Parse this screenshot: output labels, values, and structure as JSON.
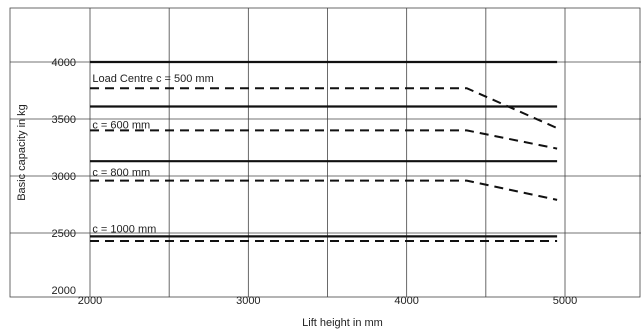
{
  "chart_data": {
    "type": "line",
    "xlabel": "Lift height in mm",
    "ylabel": "Basic capacity in kg",
    "xlim": [
      2000,
      5500
    ],
    "ylim": [
      2000,
      4200
    ],
    "xticks": [
      2000,
      3000,
      4000,
      5000
    ],
    "yticks": [
      2000,
      2500,
      3000,
      3500,
      4000
    ],
    "x_gridlines": [
      2000,
      2500,
      3000,
      3500,
      4000,
      4500,
      5000
    ],
    "y_gridlines": [
      2500,
      3000,
      3500,
      4000
    ],
    "grid": true,
    "series": [
      {
        "style": "solid",
        "x": [
          2000,
          4950
        ],
        "y": [
          4000,
          4000
        ]
      },
      {
        "style": "dashed",
        "x": [
          2000,
          4380,
          4950
        ],
        "y": [
          3770,
          3770,
          3420
        ]
      },
      {
        "style": "solid",
        "x": [
          2000,
          4950
        ],
        "y": [
          3610,
          3610
        ]
      },
      {
        "style": "dashed",
        "x": [
          2000,
          4380,
          4950
        ],
        "y": [
          3400,
          3400,
          3240
        ]
      },
      {
        "style": "solid",
        "x": [
          2000,
          4950
        ],
        "y": [
          3130,
          3130
        ]
      },
      {
        "style": "dashed",
        "x": [
          2000,
          4380,
          4950
        ],
        "y": [
          2960,
          2960,
          2790
        ]
      },
      {
        "style": "solid",
        "x": [
          2000,
          4950
        ],
        "y": [
          2470,
          2470
        ]
      },
      {
        "style": "dashed",
        "x": [
          2000,
          4950
        ],
        "y": [
          2430,
          2430
        ]
      }
    ],
    "annotations": [
      {
        "text": "Load Centre c = 500 mm",
        "x": 2015,
        "y": 3860
      },
      {
        "text": "c = 600 mm",
        "x": 2015,
        "y": 3450
      },
      {
        "text": "c = 800 mm",
        "x": 2015,
        "y": 3035
      },
      {
        "text": "c = 1000 mm",
        "x": 2015,
        "y": 2540
      }
    ]
  }
}
